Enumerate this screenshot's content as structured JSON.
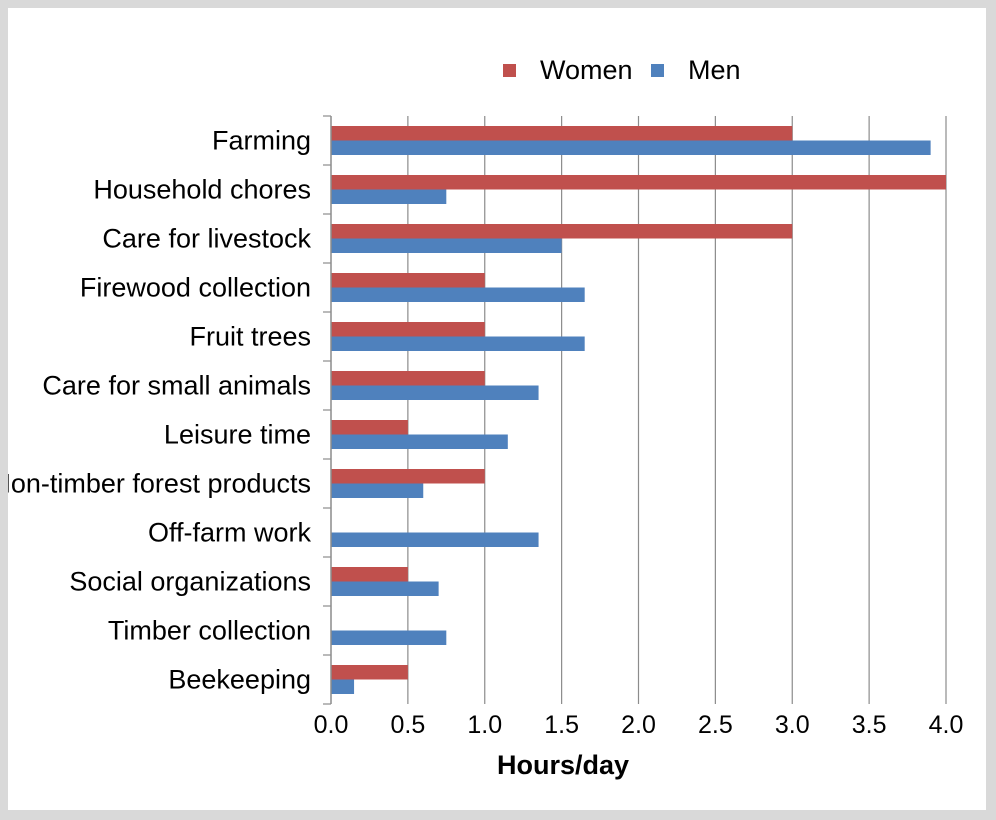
{
  "chart_data": {
    "type": "bar",
    "orientation": "horizontal",
    "categories": [
      "Farming",
      "Household chores",
      "Care for livestock",
      "Firewood collection",
      "Fruit trees",
      "Care for small animals",
      "Leisure time",
      "Non-timber forest products",
      "Off-farm work",
      "Social organizations",
      "Timber collection",
      "Beekeeping"
    ],
    "series": [
      {
        "name": "Women",
        "color": "#c0504d",
        "values": [
          3.0,
          4.0,
          3.0,
          1.0,
          1.0,
          1.0,
          0.5,
          1.0,
          0,
          0.5,
          0,
          0.5
        ]
      },
      {
        "name": "Men",
        "color": "#4f81bd",
        "values": [
          3.9,
          0.75,
          1.5,
          1.65,
          1.65,
          1.35,
          1.15,
          0.6,
          1.35,
          0.7,
          0.75,
          0.15
        ]
      }
    ],
    "xlabel": "Hours/day",
    "ylabel": "",
    "xlim": [
      0,
      4.0
    ],
    "xticks": [
      "0.0",
      "0.5",
      "1.0",
      "1.5",
      "2.0",
      "2.5",
      "3.0",
      "3.5",
      "4.0"
    ],
    "grid": true,
    "legend_position": "top"
  }
}
